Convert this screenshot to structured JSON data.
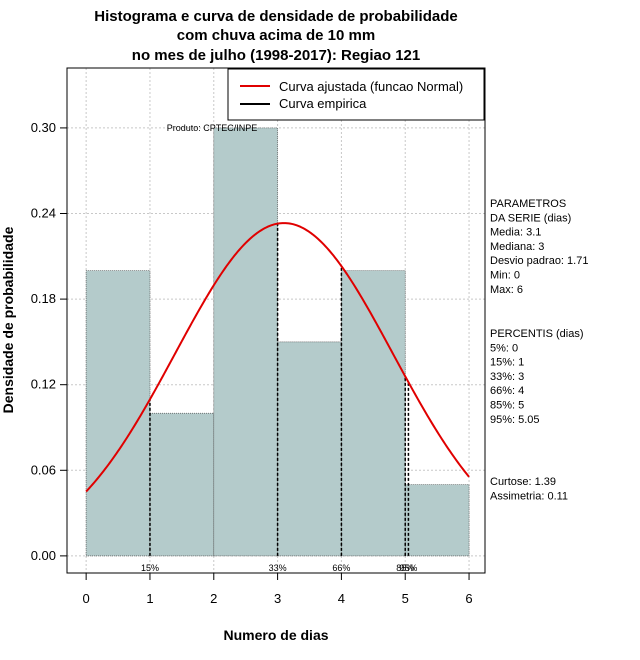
{
  "chart_data": {
    "type": "bar",
    "title_lines": [
      "Histograma e curva de densidade de probabilidade",
      "com chuva acima de 10 mm",
      "no mes de julho (1998-2017): Regiao 121"
    ],
    "xlabel": "Numero de dias",
    "ylabel": "Densidade de probabilidade",
    "xlim": [
      -0.3,
      6.25
    ],
    "ylim": [
      -0.012,
      0.342
    ],
    "x_ticks": [
      0,
      1,
      2,
      3,
      4,
      5,
      6
    ],
    "y_ticks": [
      0.0,
      0.06,
      0.12,
      0.18,
      0.24,
      0.3
    ],
    "y_tick_labels": [
      "0.00",
      "0.06",
      "0.12",
      "0.18",
      "0.24",
      "0.30"
    ],
    "grid": true,
    "bins": [
      {
        "start": 0,
        "end": 1,
        "density": 0.2
      },
      {
        "start": 1,
        "end": 2,
        "density": 0.1
      },
      {
        "start": 2,
        "end": 3,
        "density": 0.3
      },
      {
        "start": 3,
        "end": 4,
        "density": 0.15
      },
      {
        "start": 4,
        "end": 5,
        "density": 0.2
      },
      {
        "start": 5,
        "end": 6,
        "density": 0.05
      }
    ],
    "bar_color": "#b4cbcb",
    "normal_curve": {
      "mean": 3.1,
      "sd": 1.71,
      "color": "#e00000"
    },
    "empirical_color": "#000000",
    "legend_position": "top-right",
    "legend": [
      {
        "label": "Curva ajustada (funcao Normal)",
        "color": "#e00000"
      },
      {
        "label": "Curva empirica",
        "color": "#000000"
      }
    ],
    "credit": "Produto: CPTEC/INPE",
    "percentile_lines": [
      {
        "x": 1,
        "label": "15%"
      },
      {
        "x": 3,
        "label": "33%"
      },
      {
        "x": 4,
        "label": "66%"
      },
      {
        "x": 5,
        "label": "85%"
      },
      {
        "x": 5.05,
        "label": "95%"
      }
    ]
  },
  "side_panel": {
    "params_lines": [
      "PARAMETROS",
      "DA SERIE (dias)",
      "  Media: 3.1",
      "  Mediana: 3",
      "  Desvio padrao: 1.71",
      "  Min: 0",
      "  Max: 6"
    ],
    "percentis_lines": [
      "PERCENTIS (dias)",
      "   5%: 0",
      "   15%: 1",
      "   33%: 3",
      "   66%: 4",
      "   85%: 5",
      "   95%: 5.05"
    ],
    "stats_lines": [
      "    Curtose: 1.39",
      "Assimetria: 0.11"
    ]
  }
}
